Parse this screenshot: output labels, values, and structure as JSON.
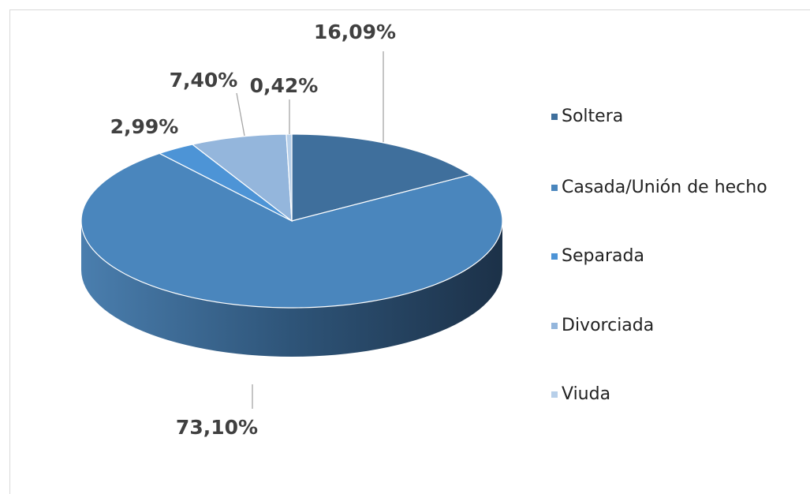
{
  "chart_data": {
    "type": "pie",
    "categories": [
      "Soltera",
      "Casada/Unión de hecho",
      "Separada",
      "Divorciada",
      "Viuda"
    ],
    "values": [
      16.09,
      73.1,
      2.99,
      7.4,
      0.42
    ],
    "value_labels": [
      "16,09%",
      "73,10%",
      "2,99%",
      "7,40%",
      "0,42%"
    ],
    "colors": [
      "#3f6f9c",
      "#4a86bd",
      "#4d94d6",
      "#94b6dc",
      "#b7cfe9"
    ],
    "legend": "right"
  }
}
